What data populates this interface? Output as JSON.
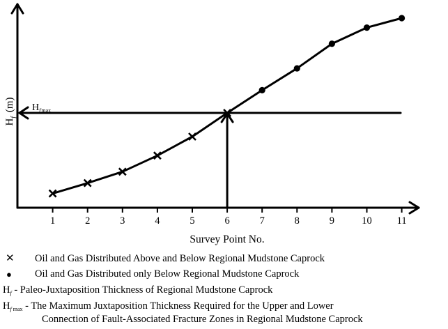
{
  "chart_data": {
    "type": "line",
    "title": "",
    "xlabel": "Survey Point No.",
    "ylabel_main": "H",
    "ylabel_sub": "f",
    "ylabel_unit": "(m)",
    "x_ticks": [
      1,
      2,
      3,
      4,
      5,
      6,
      7,
      8,
      9,
      10,
      11
    ],
    "xlim": [
      0,
      11.5
    ],
    "ylim": [
      0,
      1
    ],
    "y_ticks": [],
    "grid": false,
    "reference_line": {
      "label_main": "H",
      "label_sub": "f",
      "label_sub2": "max",
      "y": 0.5,
      "x": 6
    },
    "series": [
      {
        "marker": "x",
        "x": [
          1,
          2,
          3,
          4,
          5,
          6
        ],
        "y": [
          0.075,
          0.13,
          0.19,
          0.275,
          0.375,
          0.5
        ]
      },
      {
        "marker": "dot",
        "x": [
          7,
          8,
          9,
          10,
          11
        ],
        "y": [
          0.62,
          0.735,
          0.865,
          0.95,
          1.0
        ]
      }
    ]
  },
  "legend": {
    "cross_symbol": "✕",
    "dot_symbol": "●",
    "item1": "Oil and Gas Distributed Above and Below Regional Mudstone Caprock",
    "item2": "Oil and Gas Distributed only Below Regional Mudstone Caprock",
    "note1_main": "H",
    "note1_sub": "f",
    "note1_text": " - Paleo-Juxtaposition Thickness of  Regional Mudstone Caprock",
    "note2_main": "H",
    "note2_sub": "f",
    "note2_sub2": " max",
    "note2_text": " - The Maximum Juxtaposition Thickness Required for the Upper and Lower",
    "note2_line2": "Connection of Fault-Associated Fracture Zones in Regional Mudstone Caprock"
  }
}
